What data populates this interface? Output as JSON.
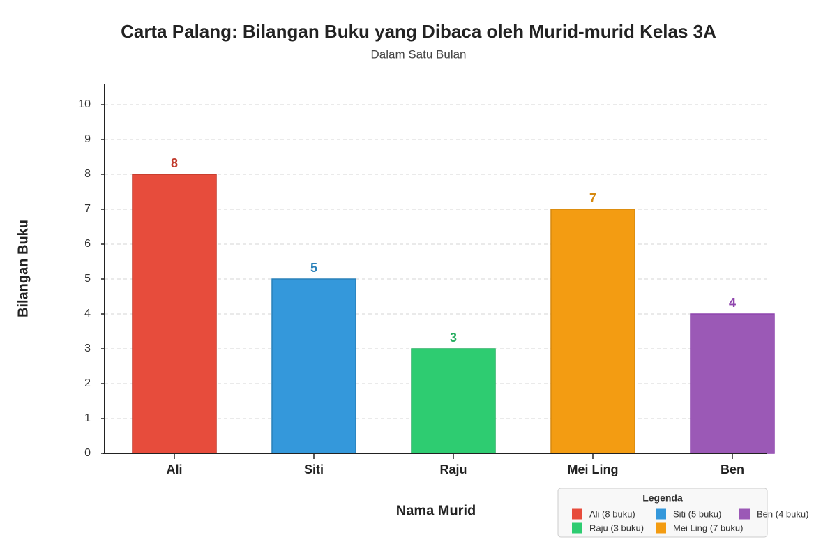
{
  "chart_data": {
    "type": "bar",
    "title": "Carta Palang: Bilangan Buku yang Dibaca oleh Murid-murid Kelas 3A",
    "subtitle": "Dalam Satu Bulan",
    "x_label": "Nama Murid",
    "y_label": "Bilangan Buku",
    "categories": [
      "Ali",
      "Siti",
      "Raju",
      "Mei Ling",
      "Ben"
    ],
    "values": [
      8,
      5,
      3,
      7,
      4
    ],
    "colors": [
      "#e74c3c",
      "#3498db",
      "#2ecc71",
      "#f39c12",
      "#9b59b6"
    ],
    "label_colors": [
      "#c0392b",
      "#2980b9",
      "#27ae60",
      "#d68910",
      "#8e44ad"
    ],
    "ylim": [
      0,
      10.6
    ],
    "yticks": [
      0,
      1,
      2,
      3,
      4,
      5,
      6,
      7,
      8,
      9,
      10
    ],
    "grid": true,
    "legend_title": "Legenda",
    "legend_labels": [
      "Ali (8 buku)",
      "Siti (5 buku)",
      "Raju (3 buku)",
      "Mei Ling (7 buku)",
      "Ben (4 buku)"
    ],
    "legend_position": "bottom-right"
  }
}
